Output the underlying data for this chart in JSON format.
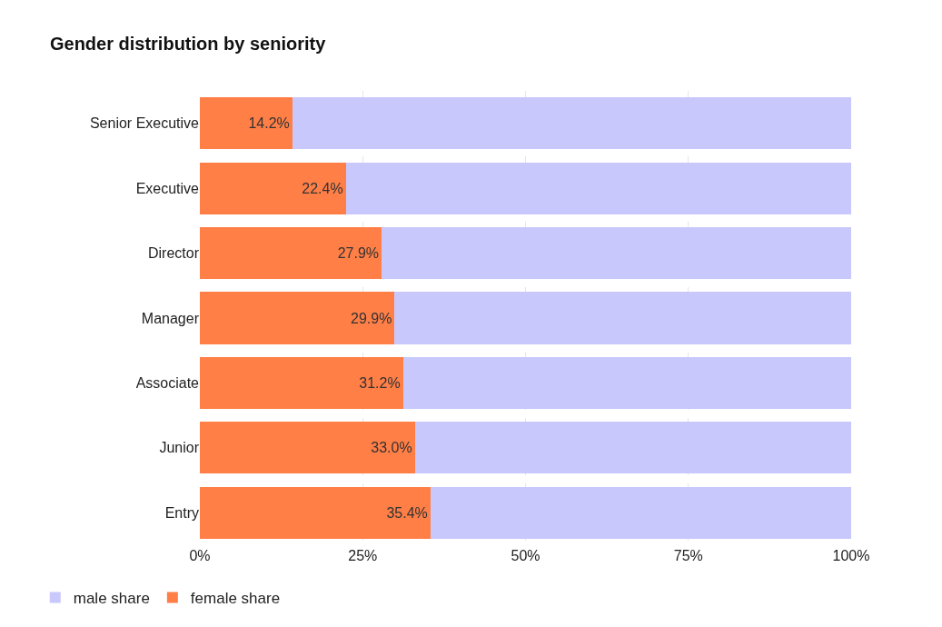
{
  "chart_data": {
    "type": "bar",
    "title": "Gender distribution by seniority",
    "orientation": "horizontal",
    "stacked": true,
    "categories": [
      "Senior Executive",
      "Executive",
      "Director",
      "Manager",
      "Associate",
      "Junior",
      "Entry"
    ],
    "series": [
      {
        "name": "female share",
        "color": "#ff7f47",
        "values": [
          14.2,
          22.4,
          27.9,
          29.9,
          31.2,
          33.0,
          35.4
        ],
        "value_labels": [
          "14.2%",
          "22.4%",
          "27.9%",
          "29.9%",
          "31.2%",
          "33.0%",
          "35.4%"
        ]
      },
      {
        "name": "male share",
        "color": "#c8c8fd",
        "values": [
          85.8,
          77.6,
          72.1,
          70.1,
          68.8,
          67.0,
          64.6
        ]
      }
    ],
    "xlim": [
      0,
      100
    ],
    "xticks": [
      {
        "value": 0,
        "label": "0%"
      },
      {
        "value": 25,
        "label": "25%"
      },
      {
        "value": 50,
        "label": "50%"
      },
      {
        "value": 75,
        "label": "75%"
      },
      {
        "value": 100,
        "label": "100%"
      }
    ],
    "grid": "x",
    "legend": "bottom left"
  }
}
